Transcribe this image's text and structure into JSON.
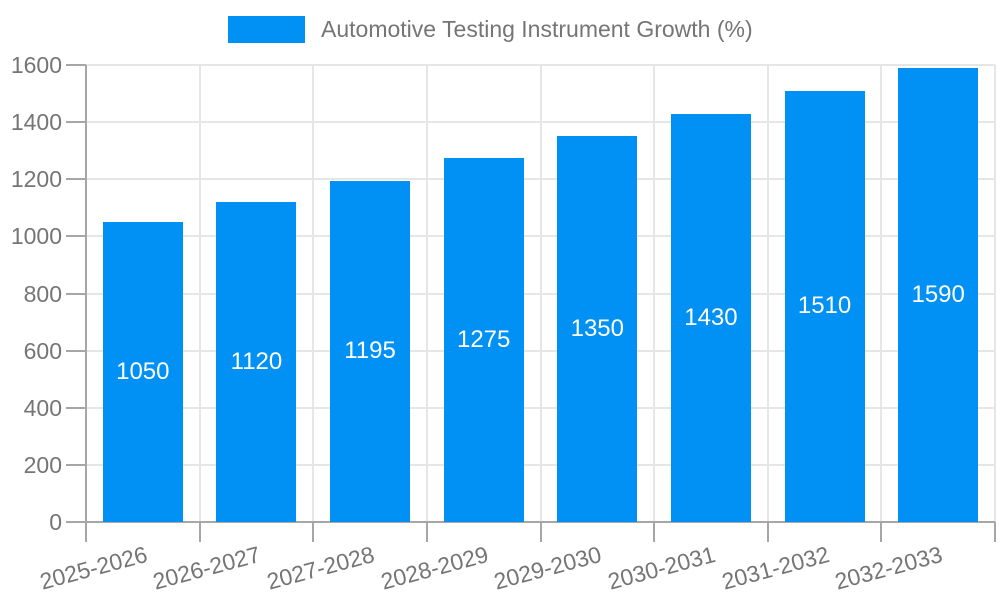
{
  "legend": {
    "label": "Automotive Testing Instrument Growth (%)"
  },
  "chart_data": {
    "type": "bar",
    "title": "Automotive Testing Instrument Growth (%)",
    "categories": [
      "2025-2026",
      "2026-2027",
      "2027-2028",
      "2028-2029",
      "2029-2030",
      "2030-2031",
      "2031-2032",
      "2032-2033"
    ],
    "values": [
      1050,
      1120,
      1195,
      1275,
      1350,
      1430,
      1510,
      1590
    ],
    "series": [
      {
        "name": "Automotive Testing Instrument Growth (%)",
        "values": [
          1050,
          1120,
          1195,
          1275,
          1350,
          1430,
          1510,
          1590
        ]
      }
    ],
    "yticks": [
      0,
      200,
      400,
      600,
      800,
      1000,
      1200,
      1400,
      1600
    ],
    "ylim": [
      0,
      1600
    ],
    "ytick_step": 200,
    "grid": true,
    "legend_position": "top",
    "bar_value_labels": "inside-center",
    "colors": {
      "bar": "#0191f5",
      "bar_value_label": "#ffffff",
      "axis_label": "#757575",
      "grid_line": "#e6e6e6",
      "axis_line": "#a6a6a6"
    }
  }
}
